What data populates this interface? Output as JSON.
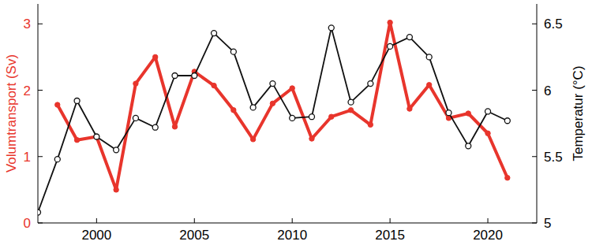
{
  "chart_data": {
    "type": "line",
    "x": [
      1997,
      1998,
      1999,
      2000,
      2001,
      2002,
      2003,
      2004,
      2005,
      2006,
      2007,
      2008,
      2009,
      2010,
      2011,
      2012,
      2013,
      2014,
      2015,
      2016,
      2017,
      2018,
      2019,
      2020,
      2021
    ],
    "xlim": [
      1997,
      2022.5
    ],
    "xticks": [
      2000,
      2005,
      2010,
      2015,
      2020
    ],
    "ylim": [
      0,
      3.3
    ],
    "yticks": [
      0,
      1,
      2,
      3
    ],
    "y2lim": [
      5,
      6.65
    ],
    "y2ticks": [
      5,
      5.5,
      6,
      6.5
    ],
    "y_label": "Volumtransport (Sv)",
    "y2_label": "Temperatur (°C)",
    "series": [
      {
        "color": "#e8352c",
        "marker": "circle",
        "line_style": "solid",
        "values": [
          null,
          1.78,
          1.25,
          1.3,
          0.5,
          2.1,
          2.5,
          1.45,
          2.28,
          2.07,
          1.7,
          1.26,
          1.8,
          2.03,
          1.27,
          1.6,
          1.7,
          1.48,
          3.02,
          1.72,
          2.08,
          1.58,
          1.65,
          1.35,
          0.68
        ]
      },
      {
        "color": "#111111",
        "marker": "open-circle",
        "line_style": "solid",
        "axis": "y2",
        "values": [
          5.08,
          5.48,
          5.92,
          5.65,
          5.55,
          5.79,
          5.72,
          6.11,
          6.11,
          6.43,
          6.29,
          5.87,
          6.05,
          5.79,
          5.8,
          6.47,
          5.91,
          6.05,
          6.33,
          6.4,
          6.25,
          5.83,
          5.58,
          5.84,
          5.77
        ]
      }
    ]
  }
}
